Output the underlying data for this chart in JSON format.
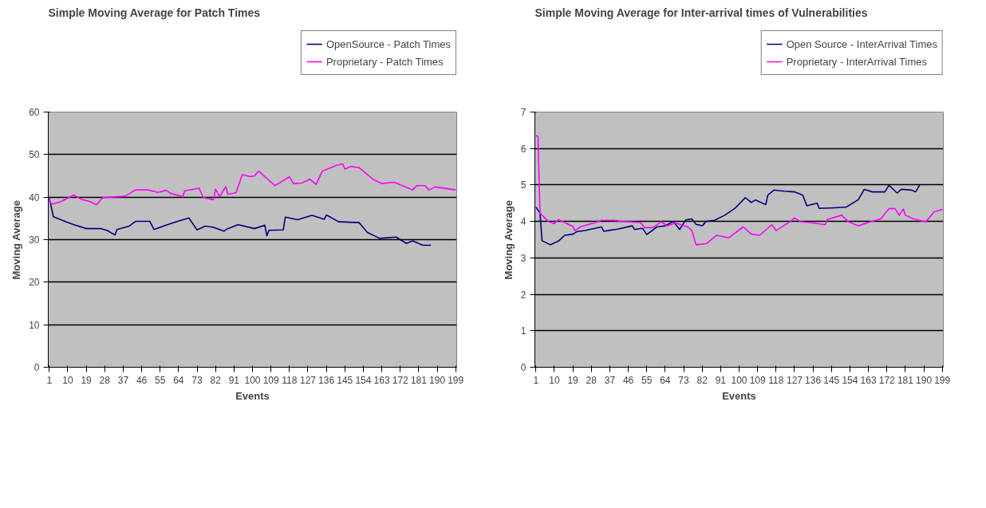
{
  "chart_data": [
    {
      "type": "line",
      "title": "Simple Moving Average for Patch Times",
      "xlabel": "Events",
      "ylabel": "Moving Average",
      "xlim": [
        0.5,
        199.5
      ],
      "xticks": [
        1,
        10,
        19,
        28,
        37,
        46,
        55,
        64,
        73,
        82,
        91,
        100,
        109,
        118,
        127,
        136,
        145,
        154,
        163,
        172,
        181,
        190,
        199
      ],
      "ylim": [
        0,
        60
      ],
      "yticks": [
        0,
        10,
        20,
        30,
        40,
        50,
        60
      ],
      "grid": "y",
      "legend": "top right",
      "line_style": "solid",
      "marker": "none",
      "series": [
        {
          "name": "OpenSource - Patch Times",
          "color": "#000080",
          "x": [
            1,
            3,
            9,
            13,
            19,
            26,
            29,
            33,
            34,
            40,
            43,
            50,
            52,
            58,
            63,
            69,
            73,
            77,
            81,
            86,
            88,
            93,
            101,
            106,
            107,
            108,
            115,
            116,
            122,
            129,
            135,
            136,
            142,
            152,
            156,
            162,
            170,
            175,
            178,
            183,
            187
          ],
          "values": [
            39.8,
            35.4,
            34.2,
            33.5,
            32.6,
            32.6,
            32.2,
            31.1,
            32.4,
            33.2,
            34.3,
            34.3,
            32.4,
            33.4,
            34.2,
            35.1,
            32.3,
            33.2,
            32.9,
            32.0,
            32.6,
            33.5,
            32.6,
            33.4,
            30.9,
            32.2,
            32.3,
            35.3,
            34.7,
            35.7,
            34.8,
            35.8,
            34.2,
            34.0,
            31.7,
            30.3,
            30.6,
            29.1,
            29.7,
            28.7,
            28.7
          ]
        },
        {
          "name": "Proprietary - Patch Times",
          "color": "#ff00ff",
          "x": [
            1,
            2,
            6,
            13,
            17,
            20,
            24,
            27,
            38,
            43,
            49,
            54,
            58,
            60,
            66,
            67,
            74,
            76,
            81,
            82,
            84,
            87,
            88,
            92,
            95,
            99,
            101,
            103,
            111,
            118,
            120,
            124,
            128,
            131,
            134,
            141,
            144,
            145,
            148,
            152,
            159,
            163,
            169,
            178,
            180,
            184,
            186,
            189,
            199
          ],
          "values": [
            39.7,
            38.3,
            38.8,
            40.5,
            39.4,
            39.1,
            38.2,
            39.9,
            40.2,
            41.7,
            41.7,
            41.1,
            41.6,
            40.9,
            40.1,
            41.5,
            42.1,
            39.9,
            39.4,
            41.9,
            40.1,
            42.5,
            40.7,
            41.0,
            45.3,
            44.8,
            45.0,
            46.1,
            42.7,
            44.8,
            43.2,
            43.3,
            44.2,
            43.0,
            46.1,
            47.5,
            47.8,
            46.6,
            47.2,
            46.9,
            44.1,
            43.2,
            43.5,
            41.7,
            42.7,
            42.7,
            41.7,
            42.4,
            41.7
          ]
        }
      ]
    },
    {
      "type": "line",
      "title": "Simple Moving Average for Inter-arrival times of Vulnerabilities",
      "xlabel": "Events",
      "ylabel": "Moving Average",
      "xlim": [
        0.5,
        199.5
      ],
      "xticks": [
        1,
        10,
        19,
        28,
        37,
        46,
        55,
        64,
        73,
        82,
        91,
        100,
        109,
        118,
        127,
        136,
        145,
        154,
        163,
        172,
        181,
        190,
        199
      ],
      "ylim": [
        0,
        7
      ],
      "yticks": [
        0,
        1,
        2,
        3,
        4,
        5,
        6,
        7
      ],
      "grid": "y",
      "legend": "top right",
      "line_style": "solid",
      "marker": "none",
      "series": [
        {
          "name": "Open Source - InterArrival Times",
          "color": "#000080",
          "x": [
            1,
            3,
            4,
            8,
            12,
            15,
            19,
            21,
            25,
            30,
            33,
            34,
            41,
            48,
            49,
            53,
            55,
            60,
            64,
            68,
            71,
            74,
            77,
            79,
            82,
            84,
            88,
            93,
            98,
            103,
            106,
            108,
            113,
            114,
            117,
            122,
            127,
            131,
            133,
            138,
            139,
            145,
            152,
            158,
            161,
            165,
            171,
            173,
            177,
            179,
            184,
            186,
            188
          ],
          "values": [
            4.39,
            4.23,
            3.47,
            3.36,
            3.46,
            3.62,
            3.65,
            3.72,
            3.75,
            3.81,
            3.85,
            3.73,
            3.79,
            3.88,
            3.78,
            3.81,
            3.64,
            3.85,
            3.88,
            4.0,
            3.78,
            4.04,
            4.07,
            3.92,
            3.88,
            4.0,
            4.03,
            4.17,
            4.36,
            4.65,
            4.52,
            4.59,
            4.46,
            4.72,
            4.86,
            4.83,
            4.81,
            4.72,
            4.43,
            4.5,
            4.36,
            4.37,
            4.39,
            4.59,
            4.88,
            4.81,
            4.81,
            4.99,
            4.78,
            4.88,
            4.86,
            4.81,
            5.0
          ]
        },
        {
          "name": "Proprietary - InterArrival Times",
          "color": "#ff00ff",
          "x": [
            1,
            2,
            3,
            7,
            10,
            12,
            15,
            19,
            20,
            23,
            30,
            33,
            39,
            43,
            52,
            54,
            58,
            62,
            65,
            69,
            75,
            77,
            79,
            84,
            89,
            95,
            102,
            106,
            110,
            116,
            118,
            125,
            127,
            130,
            134,
            142,
            143,
            150,
            153,
            158,
            164,
            169,
            173,
            176,
            178,
            180,
            181,
            185,
            191,
            195,
            199
          ],
          "values": [
            6.36,
            6.33,
            4.23,
            4.0,
            3.94,
            4.05,
            3.97,
            3.86,
            3.75,
            3.86,
            3.97,
            4.03,
            4.03,
            4.0,
            3.97,
            3.83,
            3.83,
            3.99,
            3.88,
            3.96,
            3.85,
            3.75,
            3.36,
            3.39,
            3.62,
            3.55,
            3.85,
            3.65,
            3.62,
            3.91,
            3.75,
            4.0,
            4.1,
            3.99,
            3.97,
            3.91,
            4.05,
            4.17,
            4.0,
            3.88,
            3.99,
            4.07,
            4.35,
            4.35,
            4.17,
            4.34,
            4.17,
            4.07,
            3.99,
            4.26,
            4.33
          ]
        }
      ]
    }
  ]
}
